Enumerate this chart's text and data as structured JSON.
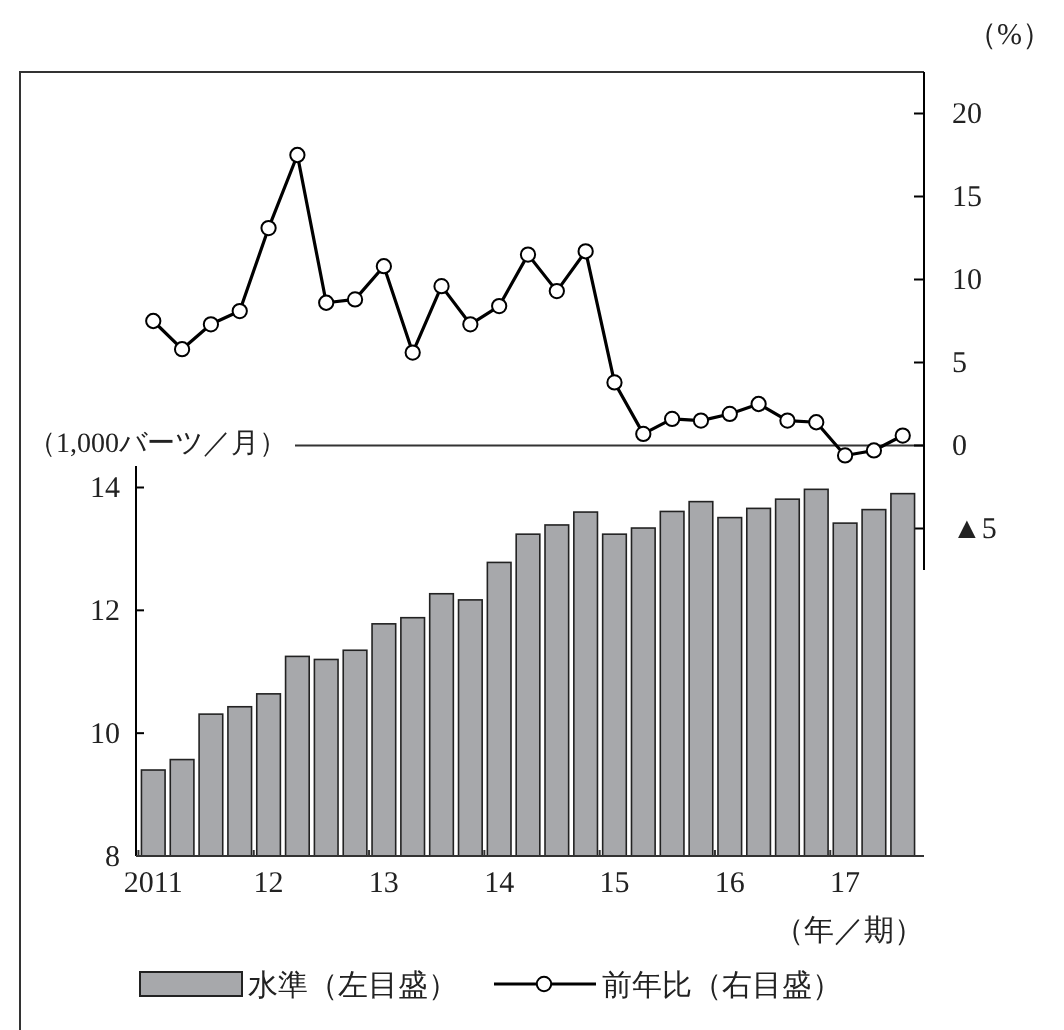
{
  "chart_data": [
    {
      "type": "line",
      "categories": [
        null,
        null,
        null,
        null,
        null,
        null,
        null,
        null,
        null,
        null,
        null,
        null,
        null,
        null,
        null,
        null,
        null,
        null,
        null,
        null,
        null,
        null,
        null,
        null,
        null,
        null,
        null
      ],
      "tick_labels": "y",
      "series": [
        {
          "name": "前年比（右目盛）",
          "color": "#000000",
          "values": [
            7.5,
            5.8,
            7.3,
            8.1,
            13.1,
            17.5,
            8.6,
            8.8,
            10.8,
            5.6,
            9.6,
            7.3,
            8.4,
            11.5,
            9.3,
            11.7,
            3.8,
            0.7,
            1.6,
            1.5,
            1.9,
            2.5,
            1.5,
            1.4,
            -0.6,
            -0.3,
            0.6
          ]
        }
      ],
      "ylim": [
        -7.5,
        22.5
      ],
      "yticks": [
        {
          "value": -5,
          "label": "▲5"
        },
        0,
        5,
        10,
        15,
        20
      ],
      "ylabel": "（%）",
      "ref_lines": [
        {
          "axis": "y",
          "value": 0
        }
      ],
      "marker": "circle",
      "legend": "bottom"
    },
    {
      "type": "bar",
      "categories": [
        "2011",
        null,
        null,
        null,
        "12",
        null,
        null,
        null,
        "13",
        null,
        null,
        null,
        "14",
        null,
        null,
        null,
        "15",
        null,
        null,
        null,
        "16",
        null,
        null,
        null,
        "17",
        null,
        null
      ],
      "series": [
        {
          "name": "水準（左目盛）",
          "color": "#a7a8ab",
          "values": [
            9.4,
            9.57,
            10.31,
            10.43,
            10.64,
            11.25,
            11.2,
            11.35,
            11.78,
            11.88,
            12.27,
            12.17,
            12.78,
            13.24,
            13.39,
            13.6,
            13.24,
            13.34,
            13.61,
            13.77,
            13.51,
            13.66,
            13.81,
            13.97,
            13.42,
            13.64,
            13.9
          ]
        }
      ],
      "ylim": [
        8,
        14.35
      ],
      "yticks": [
        8,
        10,
        12,
        14
      ],
      "ylabel": "（1,000バーツ／月）",
      "xlabel": "（年／期）",
      "legend": "bottom"
    }
  ]
}
